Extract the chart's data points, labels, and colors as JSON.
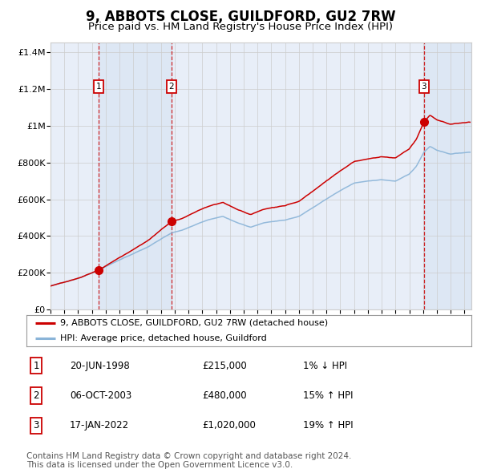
{
  "title": "9, ABBOTS CLOSE, GUILDFORD, GU2 7RW",
  "subtitle": "Price paid vs. HM Land Registry's House Price Index (HPI)",
  "title_fontsize": 12,
  "subtitle_fontsize": 9.5,
  "xlim": [
    1995.0,
    2025.5
  ],
  "ylim": [
    0,
    1450000
  ],
  "yticks": [
    0,
    200000,
    400000,
    600000,
    800000,
    1000000,
    1200000,
    1400000
  ],
  "ytick_labels": [
    "£0",
    "£200K",
    "£400K",
    "£600K",
    "£800K",
    "£1M",
    "£1.2M",
    "£1.4M"
  ],
  "xticks": [
    1995,
    1996,
    1997,
    1998,
    1999,
    2000,
    2001,
    2002,
    2003,
    2004,
    2005,
    2006,
    2007,
    2008,
    2009,
    2010,
    2011,
    2012,
    2013,
    2014,
    2015,
    2016,
    2017,
    2018,
    2019,
    2020,
    2021,
    2022,
    2023,
    2024,
    2025
  ],
  "grid_color": "#cccccc",
  "bg_color": "#ffffff",
  "plot_bg_color": "#e8eef8",
  "hpi_line_color": "#8ab4d8",
  "price_line_color": "#cc0000",
  "sale_marker_color": "#cc0000",
  "sale1_x": 1998.47,
  "sale1_y": 215000,
  "sale1_label": "1",
  "sale2_x": 2003.77,
  "sale2_y": 480000,
  "sale2_label": "2",
  "sale3_x": 2022.05,
  "sale3_y": 1020000,
  "sale3_label": "3",
  "shade1_x0": 1998.47,
  "shade1_x1": 2003.77,
  "shade2_x0": 2022.05,
  "shade2_x1": 2025.5,
  "legend_entry1": "9, ABBOTS CLOSE, GUILDFORD, GU2 7RW (detached house)",
  "legend_entry2": "HPI: Average price, detached house, Guildford",
  "table_rows": [
    {
      "num": "1",
      "date": "20-JUN-1998",
      "price": "£215,000",
      "hpi": "1% ↓ HPI"
    },
    {
      "num": "2",
      "date": "06-OCT-2003",
      "price": "£480,000",
      "hpi": "15% ↑ HPI"
    },
    {
      "num": "3",
      "date": "17-JAN-2022",
      "price": "£1,020,000",
      "hpi": "19% ↑ HPI"
    }
  ],
  "footnote": "Contains HM Land Registry data © Crown copyright and database right 2024.\nThis data is licensed under the Open Government Licence v3.0.",
  "footnote_fontsize": 7.5
}
